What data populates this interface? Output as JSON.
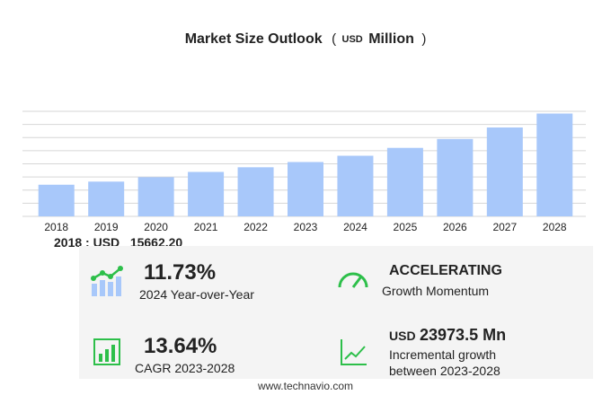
{
  "chart_data": {
    "type": "bar",
    "title": "Market Size Outlook",
    "title_note": [
      "(",
      "USD",
      "Million",
      ")"
    ],
    "categories": [
      "2018",
      "2019",
      "2020",
      "2021",
      "2022",
      "2023",
      "2024",
      "2025",
      "2026",
      "2027",
      "2028"
    ],
    "values": [
      15662.2,
      17200,
      19400,
      22000,
      24300,
      26900,
      30000,
      33900,
      38300,
      44000,
      50900
    ],
    "color": "#a8c8fa",
    "ylim": [
      0,
      52000
    ],
    "grid": true
  },
  "highlight": {
    "label": "2018 : USD",
    "value": "15662.20"
  },
  "kpis": [
    {
      "value": "11.73%",
      "label": "2024 Year-over-Year"
    },
    {
      "value": "ACCELERATING",
      "label": "Growth Momentum"
    },
    {
      "value": "13.64%",
      "label": "CAGR 2023-2028"
    },
    {
      "unit": "USD",
      "value": "23973.5 Mn",
      "label": "Incremental growth",
      "label2": "between 2023-2028"
    }
  ],
  "footer": "www.technavio.com"
}
